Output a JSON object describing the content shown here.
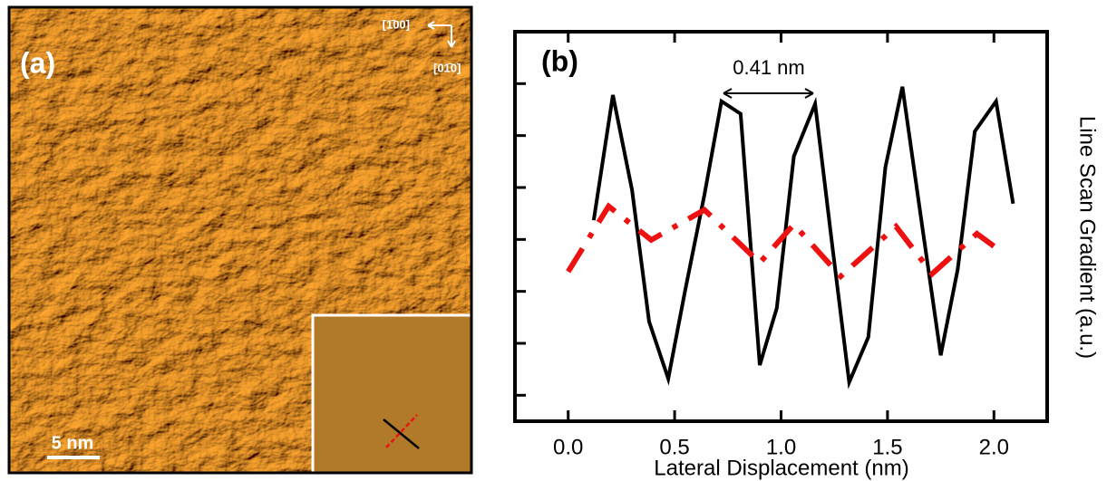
{
  "panel_a": {
    "label": "(a)",
    "direction_x": "[1̄00]",
    "direction_y": "[01̄0]",
    "scale_bar": "5 nm"
  },
  "chart_data": {
    "type": "line",
    "panel_label": "(b)",
    "annotation": "0.41 nm",
    "x_label": "Lateral Displacement (nm)",
    "y_label": "Line Scan Gradient (a.u.)",
    "xlim": [
      -0.25,
      2.25
    ],
    "xticks": [
      {
        "value": 0,
        "label": "0.0"
      },
      0.5,
      {
        "value": 1,
        "label": "1.0"
      },
      1.5,
      {
        "value": 2,
        "label": "2.0"
      }
    ],
    "ylim": [
      0,
      7.5
    ],
    "yticks": [
      0.5,
      1.5,
      2.5,
      3.5,
      4.5,
      5.5,
      6.5
    ],
    "ytick_labels": false,
    "series": [
      {
        "color": "#000000",
        "dashed": false,
        "x": [
          0.12,
          0.21,
          0.3,
          0.38,
          0.47,
          0.55,
          0.64,
          0.72,
          0.81,
          0.9,
          0.98,
          1.06,
          1.16,
          1.24,
          1.32,
          1.41,
          1.49,
          1.57,
          1.66,
          1.75,
          1.83,
          1.91,
          2.01,
          2.09
        ],
        "values": [
          3.87,
          6.28,
          4.45,
          1.92,
          0.82,
          2.53,
          4.36,
          6.16,
          5.92,
          1.08,
          2.18,
          5.1,
          6.11,
          3.4,
          0.75,
          1.62,
          4.89,
          6.44,
          3.84,
          1.27,
          2.93,
          5.58,
          6.16,
          4.19
        ]
      },
      {
        "color": "#ee1111",
        "dashed": true,
        "x": [
          0.0,
          0.19,
          0.39,
          0.64,
          0.9,
          1.06,
          1.28,
          1.54,
          1.71,
          1.92,
          2.0
        ],
        "values": [
          2.88,
          4.14,
          3.49,
          4.07,
          3.05,
          3.79,
          2.79,
          3.75,
          2.84,
          3.61,
          3.37
        ]
      }
    ]
  }
}
